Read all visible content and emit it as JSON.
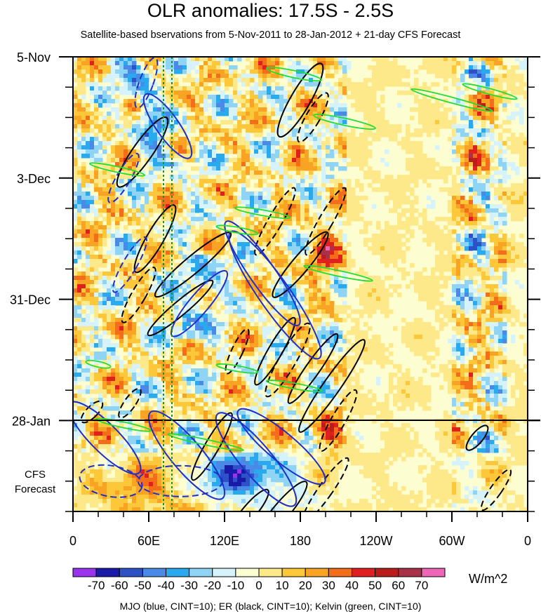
{
  "title": "OLR anomalies: 17.5S - 2.5S",
  "subtitle": "Satellite-based bservations from 5-Nov-2011 to 28-Jan-2012 + 21-day CFS Forecast",
  "units": "W/m^2",
  "footnote": "MJO (blue, CINT=10); ER (black, CINT=10); Kelvin (green, CINT=10)",
  "forecast_label_line1": "CFS",
  "forecast_label_line2": "Forecast",
  "chart_data": {
    "type": "heatmap",
    "title": "OLR anomalies: 17.5S - 2.5S",
    "x_axis": {
      "tick_labels": [
        "0",
        "60E",
        "120E",
        "180",
        "120W",
        "60W",
        "0"
      ],
      "range_degrees_east": [
        0,
        360
      ]
    },
    "y_axis": {
      "tick_labels": [
        "5-Nov",
        "3-Dec",
        "31-Dec",
        "28-Jan"
      ],
      "range_days_from_5_Nov": [
        0,
        105
      ],
      "reversed": true,
      "observation_end": "28-Jan",
      "forecast_days": 21
    },
    "colorbar": {
      "labels": [
        "-70",
        "-60",
        "-50",
        "-40",
        "-30",
        "-20",
        "-10",
        "0",
        "10",
        "20",
        "30",
        "40",
        "50",
        "60",
        "70"
      ],
      "colors": [
        "#9933ee",
        "#1a1aa8",
        "#2d52c8",
        "#4a8ae6",
        "#29a9ee",
        "#8fd4f4",
        "#d6f2fa",
        "#fdfdd2",
        "#fde88a",
        "#fcc83a",
        "#f9a324",
        "#f46d1a",
        "#e0201e",
        "#bb1c1c",
        "#a8324a",
        "#ee66b8"
      ]
    },
    "overlays": [
      "MJO (blue, CINT=10)",
      "ER (black, CINT=10)",
      "Kelvin (green, CINT=10)"
    ],
    "grid": false,
    "reference_lines": [
      "vertical dotted green near 70E-80E",
      "horizontal solid at 28-Jan"
    ]
  }
}
